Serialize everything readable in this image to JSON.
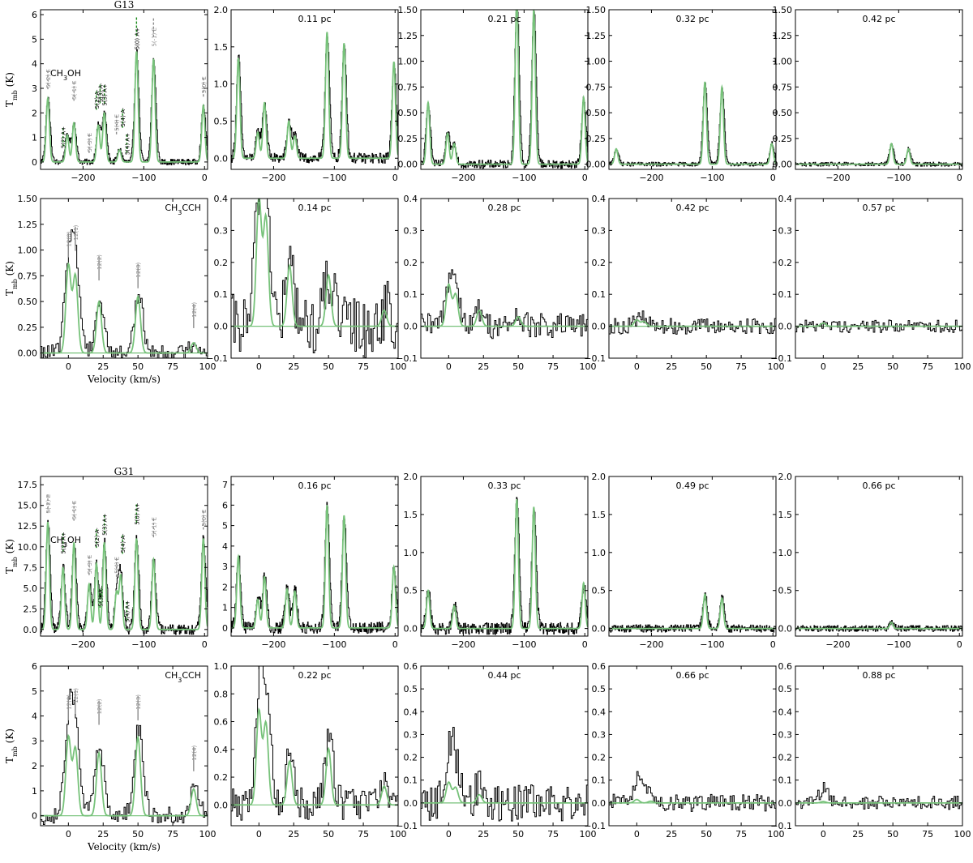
{
  "figure": {
    "x_label": "Velocity (km/s)",
    "y_label": "T_mb (K)",
    "colors": {
      "observed": "#000000",
      "model": "#77c27a",
      "line_strong": "#1a8a1a",
      "line_weak": "#8c8c8c",
      "zero": "#77c27a"
    }
  },
  "chart_data": [
    {
      "type": "line",
      "source": "G13",
      "molecule": "CH3OH",
      "panel_title": "G13",
      "offset_label": "",
      "xlim": [
        -270,
        5
      ],
      "ylim": [
        -0.3,
        6.2
      ],
      "xticks": [
        -200,
        -100,
        0
      ],
      "yticks": [
        0,
        1,
        2,
        3,
        4,
        5,
        6
      ],
      "peaks": [
        [
          -258,
          2.6
        ],
        [
          -226,
          1.1
        ],
        [
          -215,
          1.6
        ],
        [
          -175,
          1.5
        ],
        [
          -165,
          2.0
        ],
        [
          -140,
          0.5
        ],
        [
          -112,
          4.5
        ],
        [
          -84,
          4.2
        ],
        [
          -2,
          2.3
        ]
      ],
      "model_scale": 1.0,
      "noise": 0.12,
      "x_title": false,
      "show_y_title": true,
      "show_transitions": true
    },
    {
      "type": "line",
      "source": "G13",
      "molecule": "CH3OH",
      "panel_title": "",
      "offset_label": "0.11 pc",
      "xlim": [
        -270,
        5
      ],
      "ylim": [
        -0.15,
        2.0
      ],
      "xticks": [
        -200,
        -100,
        0
      ],
      "yticks": [
        0.0,
        0.5,
        1.0,
        1.5,
        2.0
      ],
      "peaks": [
        [
          -258,
          1.35
        ],
        [
          -226,
          0.35
        ],
        [
          -215,
          0.75
        ],
        [
          -175,
          0.5
        ],
        [
          -165,
          0.3
        ],
        [
          -112,
          1.7
        ],
        [
          -84,
          1.55
        ],
        [
          -2,
          1.3
        ]
      ],
      "model_scale": 1.0,
      "noise": 0.07,
      "x_title": false,
      "show_y_title": false,
      "show_transitions": false
    },
    {
      "type": "line",
      "source": "G13",
      "molecule": "CH3OH",
      "panel_title": "",
      "offset_label": "0.21 pc",
      "xlim": [
        -270,
        5
      ],
      "ylim": [
        -0.05,
        1.5
      ],
      "xticks": [
        -200,
        -100,
        0
      ],
      "yticks": [
        0.0,
        0.25,
        0.5,
        0.75,
        1.0,
        1.25,
        1.5
      ],
      "peaks": [
        [
          -258,
          0.6
        ],
        [
          -226,
          0.3
        ],
        [
          -215,
          0.2
        ],
        [
          -112,
          1.6
        ],
        [
          -84,
          1.5
        ],
        [
          -2,
          0.65
        ]
      ],
      "model_scale": 1.0,
      "noise": 0.04,
      "x_title": false,
      "show_y_title": false,
      "show_transitions": false
    },
    {
      "type": "line",
      "source": "G13",
      "molecule": "CH3OH",
      "panel_title": "",
      "offset_label": "0.32 pc",
      "xlim": [
        -270,
        5
      ],
      "ylim": [
        -0.05,
        1.5
      ],
      "xticks": [
        -200,
        -100,
        0
      ],
      "yticks": [
        0.0,
        0.25,
        0.5,
        0.75,
        1.0,
        1.25,
        1.5
      ],
      "peaks": [
        [
          -258,
          0.15
        ],
        [
          -112,
          0.8
        ],
        [
          -84,
          0.75
        ],
        [
          -2,
          0.2
        ]
      ],
      "model_scale": 1.0,
      "noise": 0.02,
      "x_title": false,
      "show_y_title": false,
      "show_transitions": false
    },
    {
      "type": "line",
      "source": "G13",
      "molecule": "CH3OH",
      "panel_title": "",
      "offset_label": "0.42 pc",
      "xlim": [
        -270,
        5
      ],
      "ylim": [
        -0.05,
        1.5
      ],
      "xticks": [
        -200,
        -100,
        0
      ],
      "yticks": [
        0.0,
        0.25,
        0.5,
        0.75,
        1.0,
        1.25,
        1.5
      ],
      "peaks": [
        [
          -112,
          0.2
        ],
        [
          -84,
          0.15
        ]
      ],
      "model_scale": 1.0,
      "noise": 0.02,
      "x_title": false,
      "show_y_title": false,
      "show_transitions": false
    },
    {
      "type": "line",
      "source": "G13",
      "molecule": "CH3CCH",
      "panel_title": "",
      "offset_label": "",
      "xlim": [
        -20,
        100
      ],
      "ylim": [
        -0.05,
        1.5
      ],
      "xticks": [
        0,
        25,
        50,
        75,
        100
      ],
      "yticks": [
        0.0,
        0.25,
        0.5,
        0.75,
        1.0,
        1.25,
        1.5
      ],
      "peaks": [
        [
          0,
          0.85
        ],
        [
          5,
          0.75
        ],
        [
          22,
          0.5
        ],
        [
          50,
          0.55
        ],
        [
          90,
          0.1
        ]
      ],
      "model_scale": 1.0,
      "noise": 0.08,
      "x_title": true,
      "show_y_title": true,
      "show_transitions": true
    },
    {
      "type": "line",
      "source": "G13",
      "molecule": "CH3CCH",
      "panel_title": "",
      "offset_label": "0.14 pc",
      "xlim": [
        -20,
        100
      ],
      "ylim": [
        -0.1,
        0.4
      ],
      "xticks": [
        0,
        25,
        50,
        75,
        100
      ],
      "yticks": [
        -0.1,
        0.0,
        0.1,
        0.2,
        0.3,
        0.4
      ],
      "peaks": [
        [
          0,
          0.4
        ],
        [
          5,
          0.34
        ],
        [
          22,
          0.19
        ],
        [
          50,
          0.16
        ],
        [
          90,
          0.05
        ]
      ],
      "model_scale": 1.0,
      "noise": 0.1,
      "x_title": false,
      "show_y_title": false,
      "show_transitions": false
    },
    {
      "type": "line",
      "source": "G13",
      "molecule": "CH3CCH",
      "panel_title": "",
      "offset_label": "0.28 pc",
      "xlim": [
        -20,
        100
      ],
      "ylim": [
        -0.1,
        0.4
      ],
      "xticks": [
        0,
        25,
        50,
        75,
        100
      ],
      "yticks": [
        -0.1,
        0.0,
        0.1,
        0.2,
        0.3,
        0.4
      ],
      "peaks": [
        [
          0,
          0.13
        ],
        [
          5,
          0.1
        ],
        [
          22,
          0.05
        ],
        [
          50,
          0.03
        ]
      ],
      "model_scale": 1.0,
      "noise": 0.04,
      "x_title": false,
      "show_y_title": false,
      "show_transitions": false
    },
    {
      "type": "line",
      "source": "G13",
      "molecule": "CH3CCH",
      "panel_title": "",
      "offset_label": "0.42 pc",
      "xlim": [
        -20,
        100
      ],
      "ylim": [
        -0.1,
        0.4
      ],
      "xticks": [
        0,
        25,
        50,
        75,
        100
      ],
      "yticks": [
        -0.1,
        0.0,
        0.1,
        0.2,
        0.3,
        0.4
      ],
      "peaks": [
        [
          0,
          0.02
        ],
        [
          5,
          0.015
        ]
      ],
      "model_scale": 1.0,
      "noise": 0.025,
      "x_title": false,
      "show_y_title": false,
      "show_transitions": false
    },
    {
      "type": "line",
      "source": "G13",
      "molecule": "CH3CCH",
      "panel_title": "",
      "offset_label": "0.57 pc",
      "xlim": [
        -20,
        100
      ],
      "ylim": [
        -0.1,
        0.4
      ],
      "xticks": [
        0,
        25,
        50,
        75,
        100
      ],
      "yticks": [
        -0.1,
        0.0,
        0.1,
        0.2,
        0.3,
        0.4
      ],
      "peaks": [
        [
          0,
          0.01
        ]
      ],
      "model_scale": 1.0,
      "noise": 0.02,
      "x_title": false,
      "show_y_title": false,
      "show_transitions": false
    },
    {
      "type": "line",
      "source": "G31",
      "molecule": "CH3OH",
      "panel_title": "G31",
      "offset_label": "",
      "xlim": [
        -270,
        5
      ],
      "ylim": [
        -0.8,
        18.5
      ],
      "xticks": [
        -200,
        -100,
        0
      ],
      "yticks": [
        0.0,
        2.5,
        5.0,
        7.5,
        10.0,
        12.5,
        15.0,
        17.5
      ],
      "peaks": [
        [
          -258,
          13
        ],
        [
          -233,
          7.5
        ],
        [
          -215,
          10.5
        ],
        [
          -190,
          5.5
        ],
        [
          -178,
          8.0
        ],
        [
          -165,
          10.5
        ],
        [
          -145,
          4.5
        ],
        [
          -138,
          6.5
        ],
        [
          -112,
          11.0
        ],
        [
          -84,
          8.5
        ],
        [
          -2,
          11.0
        ]
      ],
      "model_scale": 1.0,
      "noise": 0.6,
      "x_title": false,
      "show_y_title": true,
      "show_transitions": true
    },
    {
      "type": "line",
      "source": "G31",
      "molecule": "CH3OH",
      "panel_title": "",
      "offset_label": "0.16 pc",
      "xlim": [
        -270,
        5
      ],
      "ylim": [
        -0.4,
        7.4
      ],
      "xticks": [
        -200,
        -100,
        0
      ],
      "yticks": [
        0,
        1,
        2,
        3,
        4,
        5,
        6,
        7
      ],
      "peaks": [
        [
          -258,
          3.5
        ],
        [
          -226,
          1.4
        ],
        [
          -215,
          2.5
        ],
        [
          -178,
          1.9
        ],
        [
          -165,
          1.8
        ],
        [
          -112,
          6.0
        ],
        [
          -84,
          5.5
        ],
        [
          -2,
          3.0
        ]
      ],
      "model_scale": 1.0,
      "noise": 0.3,
      "x_title": false,
      "show_y_title": false,
      "show_transitions": false
    },
    {
      "type": "line",
      "source": "G31",
      "molecule": "CH3OH",
      "panel_title": "",
      "offset_label": "0.33 pc",
      "xlim": [
        -270,
        5
      ],
      "ylim": [
        -0.1,
        2.0
      ],
      "xticks": [
        -200,
        -100,
        0
      ],
      "yticks": [
        0.0,
        0.5,
        1.0,
        1.5,
        2.0
      ],
      "peaks": [
        [
          -258,
          0.5
        ],
        [
          -215,
          0.3
        ],
        [
          -112,
          1.7
        ],
        [
          -84,
          1.6
        ],
        [
          -2,
          0.6
        ]
      ],
      "model_scale": 1.0,
      "noise": 0.08,
      "x_title": false,
      "show_y_title": false,
      "show_transitions": false
    },
    {
      "type": "line",
      "source": "G31",
      "molecule": "CH3OH",
      "panel_title": "",
      "offset_label": "0.49 pc",
      "xlim": [
        -270,
        5
      ],
      "ylim": [
        -0.1,
        2.0
      ],
      "xticks": [
        -200,
        -100,
        0
      ],
      "yticks": [
        0.0,
        0.5,
        1.0,
        1.5,
        2.0
      ],
      "peaks": [
        [
          -112,
          0.45
        ],
        [
          -84,
          0.4
        ]
      ],
      "model_scale": 1.0,
      "noise": 0.05,
      "x_title": false,
      "show_y_title": false,
      "show_transitions": false
    },
    {
      "type": "line",
      "source": "G31",
      "molecule": "CH3OH",
      "panel_title": "",
      "offset_label": "0.66 pc",
      "xlim": [
        -270,
        5
      ],
      "ylim": [
        -0.1,
        2.0
      ],
      "xticks": [
        -200,
        -100,
        0
      ],
      "yticks": [
        0.0,
        0.5,
        1.0,
        1.5,
        2.0
      ],
      "peaks": [
        [
          -112,
          0.08
        ]
      ],
      "model_scale": 1.0,
      "noise": 0.04,
      "x_title": false,
      "show_y_title": false,
      "show_transitions": false
    },
    {
      "type": "line",
      "source": "G31",
      "molecule": "CH3CCH",
      "panel_title": "",
      "offset_label": "",
      "xlim": [
        -20,
        100
      ],
      "ylim": [
        -0.4,
        6.0
      ],
      "xticks": [
        0,
        25,
        50,
        75,
        100
      ],
      "yticks": [
        0,
        1,
        2,
        3,
        4,
        5,
        6
      ],
      "peaks": [
        [
          0,
          3.5
        ],
        [
          5,
          3.0
        ],
        [
          22,
          2.8
        ],
        [
          50,
          3.5
        ],
        [
          90,
          1.2
        ]
      ],
      "model_scale": 0.9,
      "noise": 0.35,
      "x_title": true,
      "show_y_title": true,
      "show_transitions": true
    },
    {
      "type": "line",
      "source": "G31",
      "molecule": "CH3CCH",
      "panel_title": "",
      "offset_label": "0.22 pc",
      "xlim": [
        -20,
        100
      ],
      "ylim": [
        -0.15,
        1.0
      ],
      "xticks": [
        0,
        25,
        50,
        75,
        100
      ],
      "yticks": [
        0.0,
        0.2,
        0.4,
        0.6,
        0.8,
        1.0
      ],
      "peaks": [
        [
          0,
          0.75
        ],
        [
          5,
          0.65
        ],
        [
          22,
          0.35
        ],
        [
          50,
          0.45
        ],
        [
          90,
          0.15
        ]
      ],
      "model_scale": 0.9,
      "noise": 0.12,
      "x_title": false,
      "show_y_title": false,
      "show_transitions": false
    },
    {
      "type": "line",
      "source": "G31",
      "molecule": "CH3CCH",
      "panel_title": "",
      "offset_label": "0.44 pc",
      "xlim": [
        -20,
        100
      ],
      "ylim": [
        -0.1,
        0.6
      ],
      "xticks": [
        0,
        25,
        50,
        75,
        100
      ],
      "yticks": [
        -0.1,
        0.0,
        0.1,
        0.2,
        0.3,
        0.4,
        0.5,
        0.6
      ],
      "peaks": [
        [
          0,
          0.2
        ],
        [
          5,
          0.15
        ],
        [
          22,
          0.08
        ]
      ],
      "model_scale": 0.45,
      "noise": 0.08,
      "x_title": false,
      "show_y_title": false,
      "show_transitions": false
    },
    {
      "type": "line",
      "source": "G31",
      "molecule": "CH3CCH",
      "panel_title": "",
      "offset_label": "0.66 pc",
      "xlim": [
        -20,
        100
      ],
      "ylim": [
        -0.1,
        0.6
      ],
      "xticks": [
        0,
        25,
        50,
        75,
        100
      ],
      "yticks": [
        -0.1,
        0.0,
        0.1,
        0.2,
        0.3,
        0.4,
        0.5,
        0.6
      ],
      "peaks": [
        [
          0,
          0.1
        ],
        [
          10,
          0.05
        ]
      ],
      "model_scale": 0.15,
      "noise": 0.04,
      "x_title": false,
      "show_y_title": false,
      "show_transitions": false
    },
    {
      "type": "line",
      "source": "G31",
      "molecule": "CH3CCH",
      "panel_title": "",
      "offset_label": "0.88 pc",
      "xlim": [
        -20,
        100
      ],
      "ylim": [
        -0.1,
        0.6
      ],
      "xticks": [
        0,
        25,
        50,
        75,
        100
      ],
      "yticks": [
        -0.1,
        0.0,
        0.1,
        0.2,
        0.3,
        0.4,
        0.5,
        0.6
      ],
      "peaks": [
        [
          0,
          0.06
        ]
      ],
      "model_scale": 0.1,
      "noise": 0.03,
      "x_title": false,
      "show_y_title": false,
      "show_transitions": false
    }
  ],
  "transitions": {
    "CH3OH": [
      {
        "label": "5(-2) E",
        "v": -258,
        "strong": false,
        "ord": 0
      },
      {
        "label": "5(2) A+",
        "v": -233,
        "strong": true,
        "ord": 1
      },
      {
        "label": "5(-1) E",
        "v": -215,
        "strong": false,
        "ord": 2
      },
      {
        "label": "5(-3) E",
        "v": -190,
        "strong": false,
        "ord": 3
      },
      {
        "label": "5(2) A-",
        "v": -178,
        "strong": true,
        "ord": 4
      },
      {
        "label": "5(3) A-",
        "v": -172,
        "strong": true,
        "ord": 5
      },
      {
        "label": "5(3) A+",
        "v": -165,
        "strong": true,
        "ord": 6
      },
      {
        "label": "5(4) E",
        "v": -145,
        "strong": false,
        "ord": 7
      },
      {
        "label": "5(4) A-",
        "v": -135,
        "strong": true,
        "ord": 8
      },
      {
        "label": "5(4) A+",
        "v": -128,
        "strong": true,
        "ord": 9
      },
      {
        "label": "5(0) A+",
        "v": -112,
        "strong": true,
        "ord": 10
      },
      {
        "label": "5(-1) E",
        "v": -84,
        "strong": false,
        "ord": 11
      },
      {
        "label": "5(0) E",
        "v": -2,
        "strong": false,
        "ord": 12
      }
    ],
    "CH3CCH": [
      {
        "label": "12(0)",
        "v": 0,
        "strong": false,
        "ord": 0
      },
      {
        "label": "12(1)",
        "v": 5,
        "strong": false,
        "ord": 1
      },
      {
        "label": "12(2)",
        "v": 22,
        "strong": false,
        "ord": 2
      },
      {
        "label": "12(3)",
        "v": 50,
        "strong": false,
        "ord": 3
      },
      {
        "label": "12(4)",
        "v": 90,
        "strong": false,
        "ord": 4
      }
    ]
  }
}
